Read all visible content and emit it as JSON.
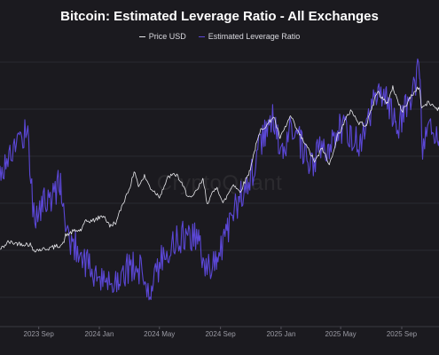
{
  "chart_data": {
    "type": "line",
    "title": "Bitcoin: Estimated Leverage Ratio - All Exchanges",
    "watermark": "CryptoQuant",
    "background": "#1b1a1f",
    "grid": true,
    "legend_position": "top-center",
    "x_axis": {
      "type": "date",
      "range": [
        "2023-06-15",
        "2025-11-15"
      ],
      "tick_labels": [
        {
          "date": "2023-09-01",
          "label": "2023 Sep"
        },
        {
          "date": "2024-01-01",
          "label": "2024 Jan"
        },
        {
          "date": "2024-05-01",
          "label": "2024 May"
        },
        {
          "date": "2024-09-01",
          "label": "2024 Sep"
        },
        {
          "date": "2025-01-01",
          "label": "2025 Jan"
        },
        {
          "date": "2025-05-01",
          "label": "2025 May"
        },
        {
          "date": "2025-09-01",
          "label": "2025 Sep"
        }
      ]
    },
    "series": [
      {
        "name": "Price USD",
        "color": "#e6e6ea",
        "ylim": [
          -20000,
          150000
        ],
        "points": [
          [
            "2023-06-15",
            26000
          ],
          [
            "2023-07-01",
            30500
          ],
          [
            "2023-07-20",
            29800
          ],
          [
            "2023-08-15",
            29200
          ],
          [
            "2023-08-20",
            26100
          ],
          [
            "2023-09-01",
            25900
          ],
          [
            "2023-09-15",
            26600
          ],
          [
            "2023-10-01",
            27500
          ],
          [
            "2023-10-20",
            29500
          ],
          [
            "2023-10-25",
            34500
          ],
          [
            "2023-11-10",
            37000
          ],
          [
            "2023-11-25",
            37800
          ],
          [
            "2023-12-05",
            43000
          ],
          [
            "2023-12-20",
            43500
          ],
          [
            "2024-01-10",
            46500
          ],
          [
            "2024-01-22",
            40000
          ],
          [
            "2024-02-05",
            43000
          ],
          [
            "2024-02-15",
            52000
          ],
          [
            "2024-02-28",
            61000
          ],
          [
            "2024-03-05",
            66000
          ],
          [
            "2024-03-13",
            73000
          ],
          [
            "2024-03-20",
            64000
          ],
          [
            "2024-04-01",
            70000
          ],
          [
            "2024-04-13",
            63000
          ],
          [
            "2024-05-01",
            58000
          ],
          [
            "2024-05-20",
            70000
          ],
          [
            "2024-06-05",
            71000
          ],
          [
            "2024-06-24",
            60000
          ],
          [
            "2024-07-05",
            56500
          ],
          [
            "2024-07-28",
            68000
          ],
          [
            "2024-08-05",
            54000
          ],
          [
            "2024-08-25",
            64000
          ],
          [
            "2024-09-06",
            53500
          ],
          [
            "2024-09-27",
            65500
          ],
          [
            "2024-10-10",
            60500
          ],
          [
            "2024-10-29",
            72500
          ],
          [
            "2024-11-11",
            88000
          ],
          [
            "2024-11-22",
            98500
          ],
          [
            "2024-12-05",
            101000
          ],
          [
            "2024-12-17",
            106000
          ],
          [
            "2024-12-30",
            92500
          ],
          [
            "2025-01-20",
            106000
          ],
          [
            "2025-02-03",
            97000
          ],
          [
            "2025-02-25",
            86000
          ],
          [
            "2025-03-10",
            78500
          ],
          [
            "2025-03-25",
            87000
          ],
          [
            "2025-04-08",
            76500
          ],
          [
            "2025-04-25",
            94500
          ],
          [
            "2025-05-22",
            110000
          ],
          [
            "2025-06-05",
            102000
          ],
          [
            "2025-06-22",
            101000
          ],
          [
            "2025-07-14",
            121000
          ],
          [
            "2025-08-02",
            113000
          ],
          [
            "2025-08-14",
            123500
          ],
          [
            "2025-09-01",
            108500
          ],
          [
            "2025-09-18",
            117000
          ],
          [
            "2025-10-06",
            124000
          ],
          [
            "2025-10-11",
            111000
          ],
          [
            "2025-10-25",
            114000
          ],
          [
            "2025-11-15",
            110000
          ]
        ]
      },
      {
        "name": "Estimated Leverage Ratio",
        "color": "#5b47d6",
        "ylim": [
          0.19,
          0.3
        ],
        "points": [
          [
            "2023-06-15",
            0.25
          ],
          [
            "2023-07-10",
            0.258
          ],
          [
            "2023-07-25",
            0.264
          ],
          [
            "2023-08-10",
            0.266
          ],
          [
            "2023-08-22",
            0.232
          ],
          [
            "2023-09-10",
            0.238
          ],
          [
            "2023-09-30",
            0.24
          ],
          [
            "2023-10-15",
            0.247
          ],
          [
            "2023-10-25",
            0.226
          ],
          [
            "2023-11-20",
            0.22
          ],
          [
            "2023-12-15",
            0.212
          ],
          [
            "2024-01-10",
            0.206
          ],
          [
            "2024-02-10",
            0.21
          ],
          [
            "2024-03-05",
            0.214
          ],
          [
            "2024-03-25",
            0.211
          ],
          [
            "2024-04-15",
            0.205
          ],
          [
            "2024-05-10",
            0.219
          ],
          [
            "2024-06-05",
            0.223
          ],
          [
            "2024-06-25",
            0.226
          ],
          [
            "2024-07-20",
            0.223
          ],
          [
            "2024-08-06",
            0.212
          ],
          [
            "2024-08-25",
            0.217
          ],
          [
            "2024-09-15",
            0.228
          ],
          [
            "2024-10-10",
            0.24
          ],
          [
            "2024-10-30",
            0.247
          ],
          [
            "2024-11-15",
            0.257
          ],
          [
            "2024-11-30",
            0.266
          ],
          [
            "2024-12-15",
            0.27
          ],
          [
            "2025-01-05",
            0.255
          ],
          [
            "2025-01-20",
            0.268
          ],
          [
            "2025-02-10",
            0.26
          ],
          [
            "2025-03-01",
            0.25
          ],
          [
            "2025-03-20",
            0.259
          ],
          [
            "2025-04-08",
            0.255
          ],
          [
            "2025-04-25",
            0.269
          ],
          [
            "2025-05-20",
            0.264
          ],
          [
            "2025-06-10",
            0.261
          ],
          [
            "2025-06-30",
            0.272
          ],
          [
            "2025-07-15",
            0.282
          ],
          [
            "2025-08-01",
            0.278
          ],
          [
            "2025-08-20",
            0.267
          ],
          [
            "2025-09-05",
            0.272
          ],
          [
            "2025-09-25",
            0.283
          ],
          [
            "2025-10-08",
            0.291
          ],
          [
            "2025-10-11",
            0.259
          ],
          [
            "2025-10-25",
            0.265
          ],
          [
            "2025-11-15",
            0.262
          ]
        ]
      }
    ]
  }
}
